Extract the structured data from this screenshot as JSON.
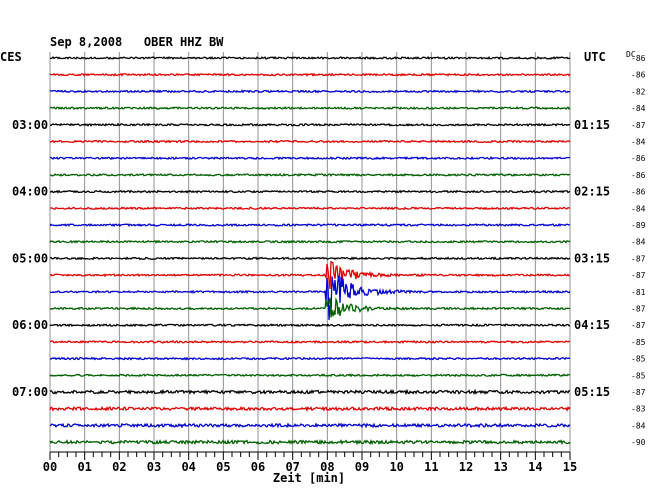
{
  "chart_data": {
    "type": "line",
    "title": "Sep 8,2008   OBER HHZ BW",
    "left_timezone": "CES",
    "right_timezone": "UTC",
    "dc_label": "DC",
    "xlabel": "Zeit [min]",
    "xlim": [
      0,
      15
    ],
    "x_ticks": [
      "00",
      "01",
      "02",
      "03",
      "04",
      "05",
      "06",
      "07",
      "08",
      "09",
      "10",
      "11",
      "12",
      "13",
      "14",
      "15"
    ],
    "trace_interval_min": 15,
    "trace_colors": [
      "#000000",
      "#e00000",
      "#0000d0",
      "#006000"
    ],
    "hour_labels_left": [
      {
        "trace": 4,
        "text": "03:00"
      },
      {
        "trace": 8,
        "text": "04:00"
      },
      {
        "trace": 12,
        "text": "05:00"
      },
      {
        "trace": 16,
        "text": "06:00"
      },
      {
        "trace": 20,
        "text": "07:00"
      }
    ],
    "hour_labels_right": [
      {
        "trace": 4,
        "text": "01:15"
      },
      {
        "trace": 8,
        "text": "02:15"
      },
      {
        "trace": 12,
        "text": "03:15"
      },
      {
        "trace": 16,
        "text": "04:15"
      },
      {
        "trace": 20,
        "text": "05:15"
      }
    ],
    "dc_offsets": [
      "-86",
      "-86",
      "-82",
      "-84",
      "-87",
      "-84",
      "-86",
      "-86",
      "-86",
      "-84",
      "-89",
      "-84",
      "-87",
      "-87",
      "-81",
      "-87",
      "-87",
      "-85",
      "-85",
      "-85",
      "-87",
      "-83",
      "-84",
      "-90"
    ],
    "event": {
      "traces": [
        13,
        14,
        15
      ],
      "onset_min": 7.95,
      "coda_end_min": 11.0,
      "peak_color": "#e00000"
    }
  }
}
